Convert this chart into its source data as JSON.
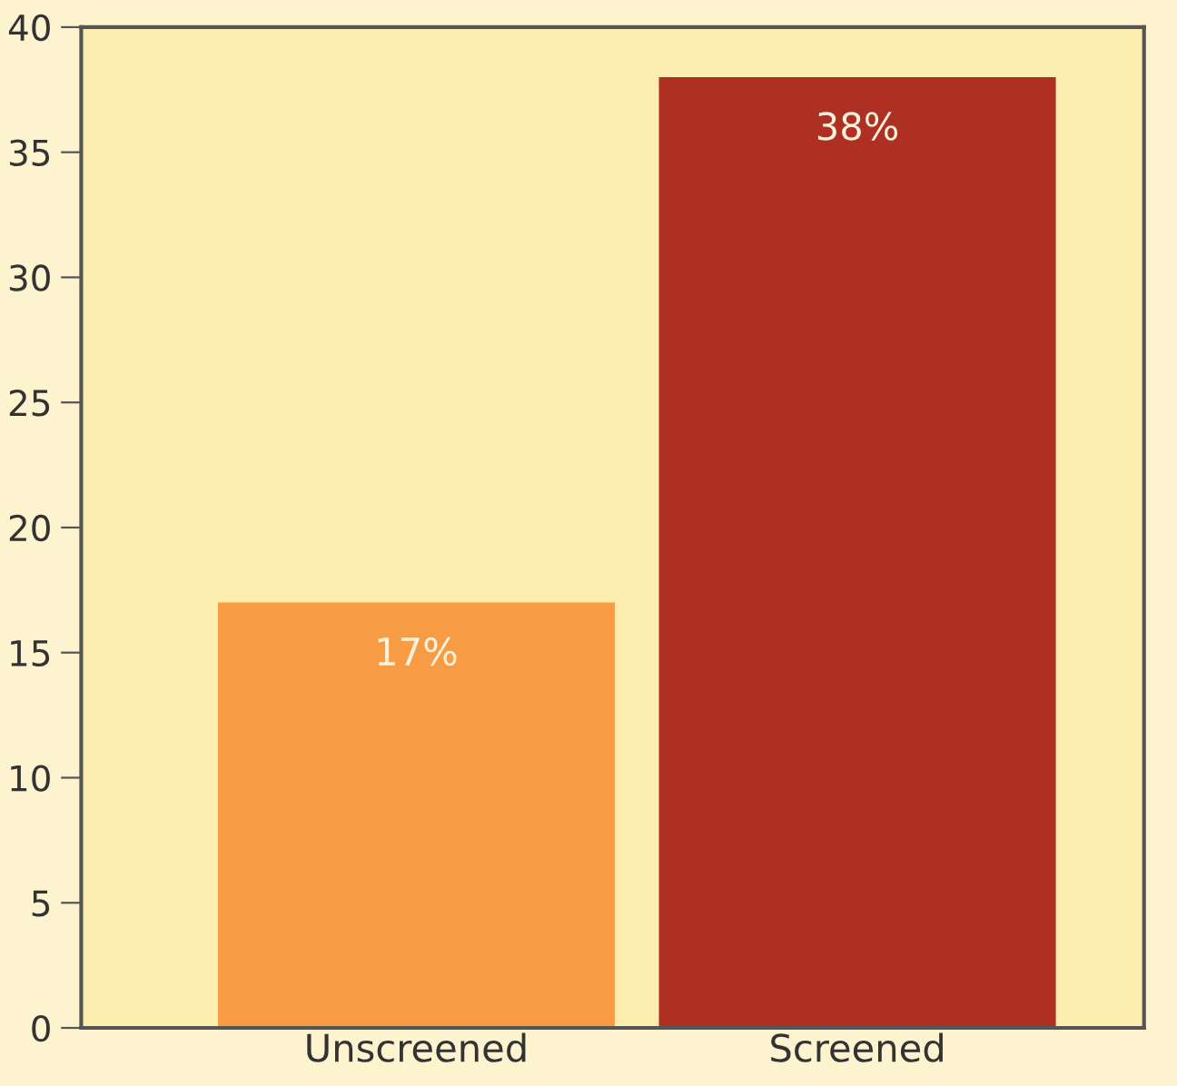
{
  "chart_data": {
    "type": "bar",
    "categories": [
      "Unscreened",
      "Screened"
    ],
    "values": [
      17,
      38
    ],
    "value_labels": [
      "17%",
      "38%"
    ],
    "colors": [
      "#f79c45",
      "#ae3022"
    ],
    "ylim": [
      0,
      40
    ],
    "yticks": [
      0,
      5,
      10,
      15,
      20,
      25,
      30,
      35,
      40
    ],
    "grid": false,
    "legend": false
  }
}
